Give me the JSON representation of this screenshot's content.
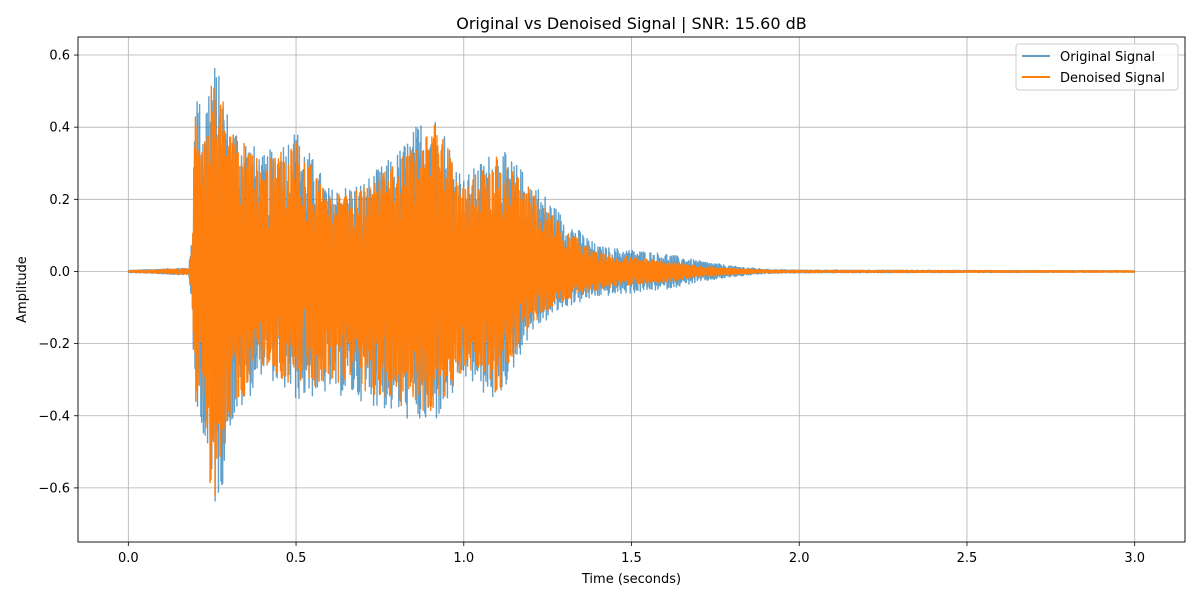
{
  "chart_data": {
    "type": "line",
    "title": "Original vs Denoised Signal | SNR: 15.60 dB",
    "xlabel": "Time (seconds)",
    "ylabel": "Amplitude",
    "xlim": [
      -0.15,
      3.15
    ],
    "ylim": [
      -0.75,
      0.65
    ],
    "x_ticks": [
      0.0,
      0.5,
      1.0,
      1.5,
      2.0,
      2.5,
      3.0
    ],
    "x_tick_labels": [
      "0.0",
      "0.5",
      "1.0",
      "1.5",
      "2.0",
      "2.5",
      "3.0"
    ],
    "y_ticks": [
      -0.6,
      -0.4,
      -0.2,
      0.0,
      0.2,
      0.4,
      0.6
    ],
    "y_tick_labels": [
      "−0.6",
      "−0.4",
      "−0.2",
      "0.0",
      "0.2",
      "0.4",
      "0.6"
    ],
    "grid": true,
    "legend_position": "top-right",
    "series": [
      {
        "name": "Original Signal",
        "color": "#1f77b4",
        "opacity": 0.7,
        "x_range": [
          0.0,
          3.0
        ],
        "envelope": {
          "t": [
            0.0,
            0.18,
            0.19,
            0.2,
            0.22,
            0.25,
            0.28,
            0.3,
            0.35,
            0.4,
            0.5,
            0.6,
            0.7,
            0.8,
            0.9,
            0.95,
            1.0,
            1.1,
            1.2,
            1.3,
            1.4,
            1.5,
            1.6,
            1.7,
            1.8,
            1.9,
            2.0,
            3.0
          ],
          "max": [
            0.003,
            0.01,
            0.1,
            0.56,
            0.43,
            0.6,
            0.52,
            0.43,
            0.38,
            0.32,
            0.4,
            0.23,
            0.25,
            0.33,
            0.46,
            0.38,
            0.26,
            0.35,
            0.26,
            0.15,
            0.07,
            0.06,
            0.05,
            0.03,
            0.015,
            0.006,
            0.004,
            0.002
          ],
          "min": [
            -0.003,
            -0.01,
            -0.1,
            -0.44,
            -0.42,
            -0.68,
            -0.6,
            -0.44,
            -0.37,
            -0.28,
            -0.36,
            -0.34,
            -0.36,
            -0.4,
            -0.44,
            -0.38,
            -0.3,
            -0.37,
            -0.17,
            -0.1,
            -0.07,
            -0.06,
            -0.05,
            -0.03,
            -0.015,
            -0.006,
            -0.004,
            -0.002
          ]
        }
      },
      {
        "name": "Denoised Signal",
        "color": "#ff7f0e",
        "opacity": 1.0,
        "x_range": [
          0.0,
          3.0
        ],
        "envelope": {
          "t": [
            0.0,
            0.18,
            0.19,
            0.2,
            0.22,
            0.25,
            0.28,
            0.3,
            0.35,
            0.4,
            0.5,
            0.6,
            0.7,
            0.8,
            0.9,
            0.95,
            1.0,
            1.1,
            1.2,
            1.3,
            1.4,
            1.5,
            1.6,
            1.7,
            1.8,
            1.9,
            2.0,
            3.0
          ],
          "max": [
            0.002,
            0.008,
            0.08,
            0.52,
            0.4,
            0.55,
            0.48,
            0.4,
            0.35,
            0.3,
            0.37,
            0.21,
            0.23,
            0.3,
            0.43,
            0.35,
            0.24,
            0.32,
            0.23,
            0.12,
            0.05,
            0.04,
            0.03,
            0.015,
            0.008,
            0.004,
            0.003,
            0.002
          ],
          "min": [
            -0.002,
            -0.008,
            -0.08,
            -0.4,
            -0.39,
            -0.64,
            -0.58,
            -0.41,
            -0.34,
            -0.26,
            -0.33,
            -0.31,
            -0.33,
            -0.37,
            -0.4,
            -0.35,
            -0.27,
            -0.34,
            -0.15,
            -0.08,
            -0.05,
            -0.04,
            -0.03,
            -0.015,
            -0.008,
            -0.004,
            -0.003,
            -0.002
          ]
        }
      }
    ]
  }
}
